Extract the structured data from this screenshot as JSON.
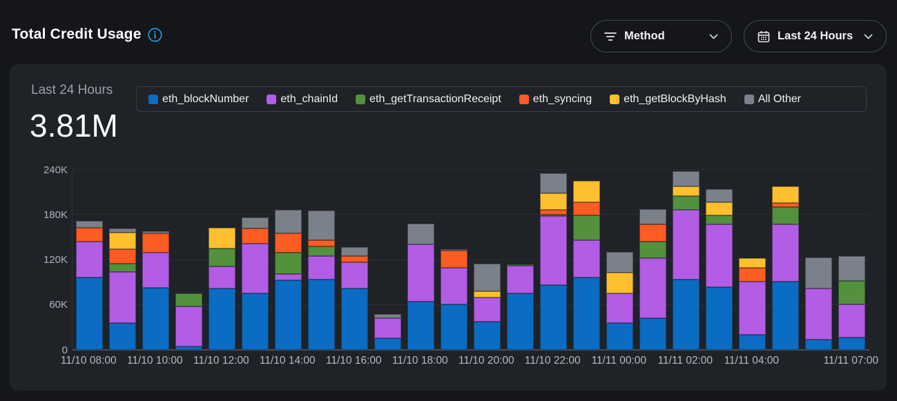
{
  "header": {
    "title": "Total Credit Usage",
    "filters": {
      "method": {
        "label": "Method",
        "icon": "filter-icon"
      },
      "range": {
        "label": "Last 24 Hours",
        "icon": "calendar-icon"
      }
    }
  },
  "card": {
    "period_label": "Last 24 Hours",
    "total_value": "3.81M"
  },
  "colors": {
    "eth_blockNumber": "#0a6cc2",
    "eth_chainId": "#b35ce6",
    "eth_getTransactionReceipt": "#53913e",
    "eth_syncing": "#fd5c22",
    "eth_getBlockByHash": "#fec02f",
    "all_other": "#7b818b",
    "accent_info": "#2e9fe8"
  },
  "chart_data": {
    "type": "bar",
    "stacked": true,
    "title": "Total Credit Usage",
    "subtitle": "Last 24 Hours total 3.81M",
    "legend_position": "top",
    "grid": true,
    "values_unit": "K (thousands of credits)",
    "ylim_k": [
      0,
      240
    ],
    "y_ticks_k": [
      0,
      60,
      120,
      180,
      240
    ],
    "y_tick_labels": [
      "0",
      "60K",
      "120K",
      "180K",
      "240K"
    ],
    "categories": [
      "11/10 08:00",
      "11/10 09:00",
      "11/10 10:00",
      "11/10 11:00",
      "11/10 12:00",
      "11/10 13:00",
      "11/10 14:00",
      "11/10 15:00",
      "11/10 16:00",
      "11/10 17:00",
      "11/10 18:00",
      "11/10 19:00",
      "11/10 20:00",
      "11/10 21:00",
      "11/10 22:00",
      "11/10 23:00",
      "11/11 00:00",
      "11/11 01:00",
      "11/11 02:00",
      "11/11 03:00",
      "11/11 04:00",
      "11/11 05:00",
      "11/11 06:00",
      "11/11 07:00"
    ],
    "x_tick_indices": [
      0,
      2,
      4,
      6,
      8,
      10,
      12,
      14,
      16,
      18,
      20,
      23
    ],
    "series": [
      {
        "name": "eth_blockNumber",
        "color": "#0a6cc2",
        "values_k": [
          97,
          36,
          83,
          5,
          82,
          75,
          93,
          94,
          82,
          16,
          64,
          61,
          38,
          75,
          86,
          97,
          36,
          42,
          94,
          84,
          20,
          91,
          14,
          17
        ]
      },
      {
        "name": "eth_chainId",
        "color": "#b35ce6",
        "values_k": [
          47,
          68,
          47,
          53,
          29,
          67,
          8,
          31,
          35,
          26,
          77,
          48,
          32,
          37,
          92,
          49,
          39,
          80,
          93,
          83,
          71,
          76,
          68,
          44
        ]
      },
      {
        "name": "eth_getTransactionReceipt",
        "color": "#53913e",
        "values_k": [
          0,
          11,
          0,
          17,
          24,
          0,
          29,
          13,
          0,
          0,
          0,
          0,
          0,
          1,
          2,
          33,
          0,
          22,
          18,
          12,
          0,
          23,
          0,
          31
        ]
      },
      {
        "name": "eth_syncing",
        "color": "#fd5c22",
        "values_k": [
          19,
          19,
          25,
          0,
          0,
          20,
          25,
          8,
          8,
          0,
          0,
          23,
          0,
          0,
          7,
          18,
          0,
          23,
          0,
          0,
          18,
          6,
          0,
          0
        ]
      },
      {
        "name": "eth_getBlockByHash",
        "color": "#fec02f",
        "values_k": [
          0,
          22,
          0,
          0,
          28,
          0,
          0,
          0,
          0,
          0,
          0,
          0,
          8,
          0,
          22,
          28,
          28,
          0,
          13,
          18,
          13,
          22,
          0,
          0
        ]
      },
      {
        "name": "All Other",
        "color": "#7b818b",
        "values_k": [
          9,
          6,
          3,
          0,
          0,
          15,
          32,
          40,
          12,
          6,
          27,
          1,
          37,
          0,
          26,
          0,
          28,
          21,
          20,
          17,
          0,
          0,
          41,
          33
        ]
      }
    ]
  }
}
